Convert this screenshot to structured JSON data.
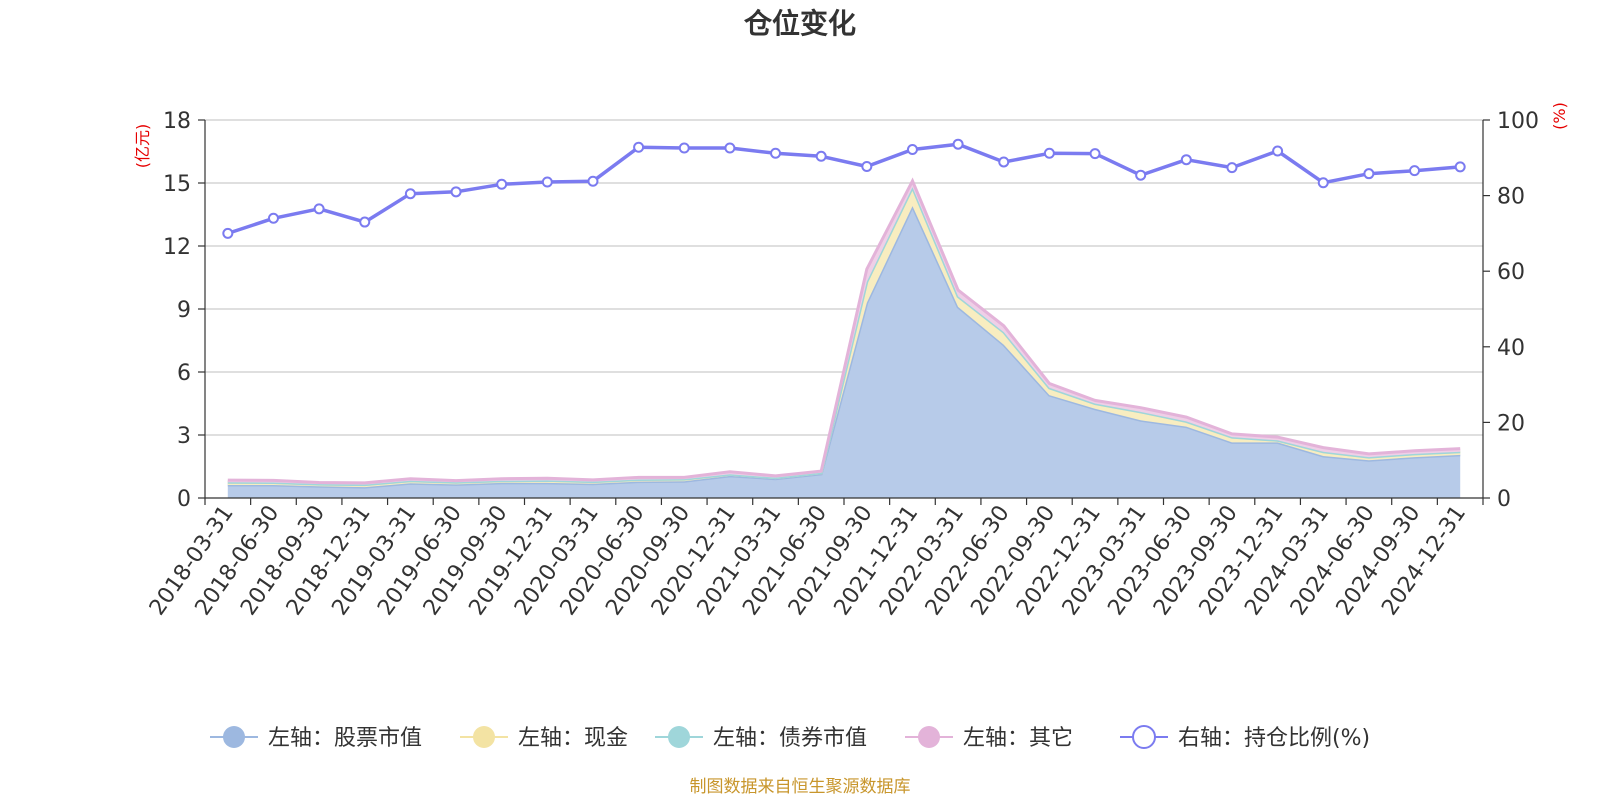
{
  "chart_data": {
    "type": "area",
    "title": "仓位变化",
    "left_axis_unit": "(亿元)",
    "right_axis_unit": "(%)",
    "left_ylim": [
      0,
      18
    ],
    "left_ticks": [
      0,
      3,
      6,
      9,
      12,
      15,
      18
    ],
    "right_ylim": [
      0,
      100
    ],
    "right_ticks": [
      0,
      20,
      40,
      60,
      80,
      100
    ],
    "grid": true,
    "legend_position": "bottom",
    "categories": [
      "2018-03-31",
      "2018-06-30",
      "2018-09-30",
      "2018-12-31",
      "2019-03-31",
      "2019-06-30",
      "2019-09-30",
      "2019-12-31",
      "2020-03-31",
      "2020-06-30",
      "2020-09-30",
      "2020-12-31",
      "2021-03-31",
      "2021-06-30",
      "2021-09-30",
      "2021-12-31",
      "2022-03-31",
      "2022-06-30",
      "2022-09-30",
      "2022-12-31",
      "2023-03-31",
      "2023-06-30",
      "2023-09-30",
      "2023-12-31",
      "2024-03-31",
      "2024-06-30",
      "2024-09-30",
      "2024-12-31"
    ],
    "series": [
      {
        "name": "左轴：股票市值",
        "axis": "left",
        "type": "stacked-area",
        "color": "#9db8e0",
        "fill": "#b7cbe9",
        "values": [
          0.62,
          0.62,
          0.56,
          0.52,
          0.7,
          0.65,
          0.72,
          0.72,
          0.68,
          0.78,
          0.8,
          1.05,
          0.92,
          1.15,
          9.3,
          13.9,
          9.1,
          7.3,
          4.9,
          4.25,
          3.7,
          3.4,
          2.65,
          2.65,
          2.0,
          1.8,
          1.95,
          2.05
        ]
      },
      {
        "name": "左轴：现金",
        "axis": "left",
        "type": "stacked-area",
        "color": "#f3e3a3",
        "fill": "#f8edc0",
        "values": [
          0.13,
          0.12,
          0.1,
          0.12,
          0.12,
          0.1,
          0.1,
          0.12,
          0.1,
          0.1,
          0.1,
          0.08,
          0.05,
          0.05,
          1.0,
          0.9,
          0.5,
          0.6,
          0.35,
          0.25,
          0.4,
          0.25,
          0.25,
          0.1,
          0.2,
          0.15,
          0.15,
          0.15
        ]
      },
      {
        "name": "左轴：债券市值",
        "axis": "left",
        "type": "stacked-area",
        "color": "#9fd6da",
        "fill": "#bfe5e8",
        "values": [
          0,
          0,
          0,
          0,
          0,
          0,
          0,
          0,
          0,
          0,
          0,
          0,
          0,
          0,
          0,
          0,
          0,
          0,
          0,
          0,
          0,
          0,
          0,
          0,
          0,
          0,
          0,
          0
        ]
      },
      {
        "name": "左轴：其它",
        "axis": "left",
        "type": "stacked-area",
        "color": "#e3b3d9",
        "fill": "#efcfe7",
        "values": [
          0.1,
          0.1,
          0.08,
          0.08,
          0.1,
          0.08,
          0.1,
          0.1,
          0.08,
          0.1,
          0.08,
          0.12,
          0.08,
          0.08,
          0.6,
          0.3,
          0.3,
          0.3,
          0.2,
          0.15,
          0.2,
          0.2,
          0.15,
          0.15,
          0.2,
          0.15,
          0.15,
          0.15
        ]
      },
      {
        "name": "右轴：持仓比例(%)",
        "axis": "right",
        "type": "line",
        "color": "#7b7bf0",
        "values": [
          70,
          74,
          76.5,
          73,
          80.5,
          81,
          83,
          83.6,
          83.8,
          92.8,
          92.6,
          92.6,
          91.2,
          90.4,
          87.7,
          92.2,
          93.6,
          88.9,
          91.2,
          91.1,
          85.4,
          89.5,
          87.4,
          91.8,
          83.4,
          85.8,
          86.6,
          87.6
        ]
      }
    ]
  },
  "footer": {
    "source": "制图数据来自恒生聚源数据库"
  }
}
